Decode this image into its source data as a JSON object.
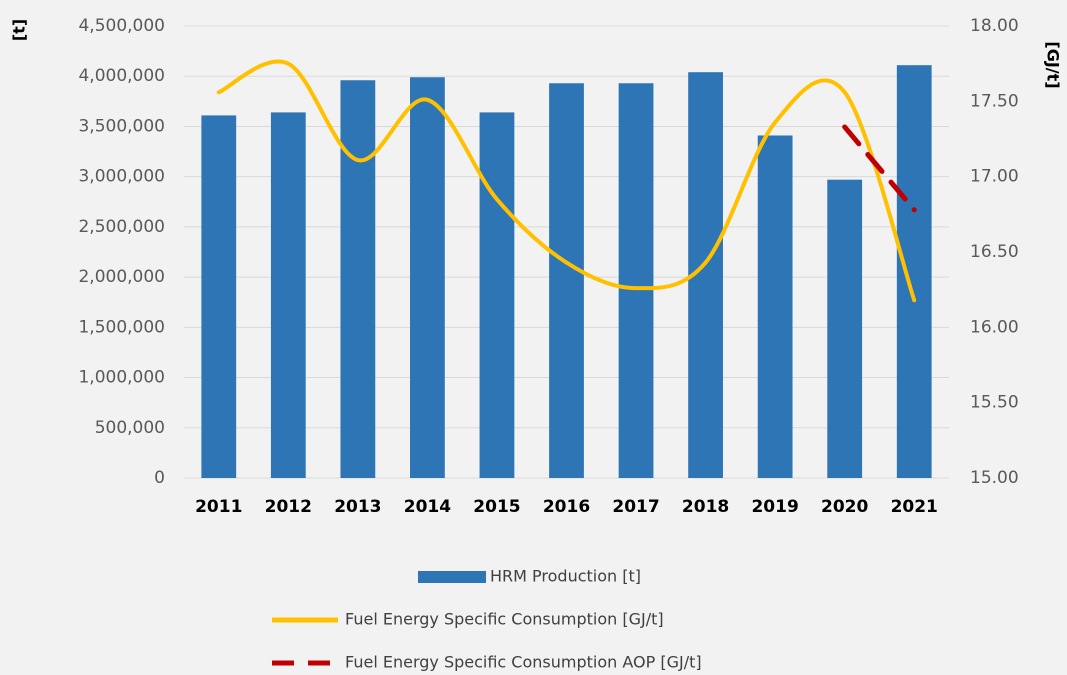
{
  "chart_data": {
    "type": "bar_line",
    "y_axis_label": "[t]",
    "y2_axis_label": "[GJ/t]",
    "categories": [
      "2011",
      "2012",
      "2013",
      "2014",
      "2015",
      "2016",
      "2017",
      "2018",
      "2019",
      "2020",
      "2021"
    ],
    "series": [
      {
        "name": "HRM Production [t]",
        "type": "bar",
        "color": "#2e75b6",
        "values": [
          3610000,
          3640000,
          3960000,
          3990000,
          3640000,
          3930000,
          3930000,
          4040000,
          3410000,
          2970000,
          4110000
        ]
      },
      {
        "name": "Fuel Energy Specific Consumption [GJ/t]",
        "type": "line",
        "axis": "y2",
        "color": "#ffc000",
        "dash": false,
        "values": [
          17.56,
          17.75,
          17.11,
          17.51,
          16.85,
          16.43,
          16.26,
          16.43,
          17.36,
          17.56,
          16.18
        ]
      },
      {
        "name": "Fuel Energy Specific Consumption AOP [GJ/t]",
        "type": "line",
        "axis": "y2",
        "color": "#c00000",
        "dash": true,
        "values": [
          null,
          null,
          null,
          null,
          null,
          null,
          null,
          null,
          null,
          17.33,
          16.78
        ]
      }
    ],
    "ylim": [
      0,
      4500000
    ],
    "yticks": [
      0,
      {
        "value": 500000,
        "label": "500,000"
      },
      {
        "value": 1000000,
        "label": "1,000,000"
      },
      {
        "value": 1500000,
        "label": "1,500,000"
      },
      {
        "value": 2000000,
        "label": "2,000,000"
      },
      {
        "value": 2500000,
        "label": "2,500,000"
      },
      {
        "value": 3000000,
        "label": "3,000,000"
      },
      {
        "value": 3500000,
        "label": "3,500,000"
      },
      {
        "value": 4000000,
        "label": "4,000,000"
      },
      {
        "value": 4500000,
        "label": "4,500,000"
      }
    ],
    "y2lim": [
      15,
      18
    ],
    "y2ticks": [
      {
        "value": 15,
        "label": "15.00"
      },
      {
        "value": 15.5,
        "label": "15.50"
      },
      {
        "value": 16,
        "label": "16.00"
      },
      {
        "value": 16.5,
        "label": "16.50"
      },
      {
        "value": 17,
        "label": "17.00"
      },
      {
        "value": 17.5,
        "label": "17.50"
      },
      {
        "value": 18,
        "label": "18.00"
      }
    ],
    "grid": true,
    "legend": "bottom"
  }
}
